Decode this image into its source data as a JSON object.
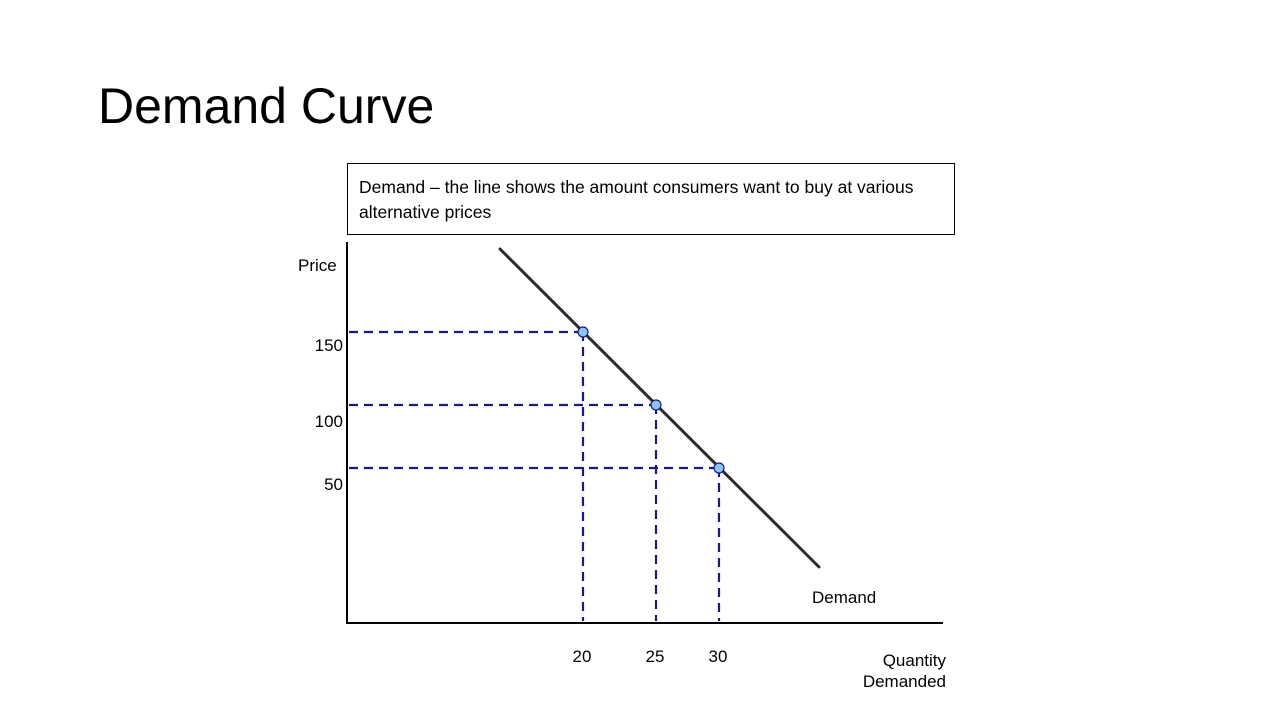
{
  "slide": {
    "title": "Demand Curve"
  },
  "caption": {
    "text": "Demand – the line shows the amount consumers want to buy at various alternative prices"
  },
  "chart_data": {
    "type": "line",
    "ylabel": "Price",
    "xlabel_lines": [
      "Quantity",
      "Demanded"
    ],
    "line_label": "Demand",
    "x_ticks": [
      {
        "label": "20",
        "value": 20
      },
      {
        "label": "25",
        "value": 25
      },
      {
        "label": "30",
        "value": 30
      }
    ],
    "y_ticks": [
      {
        "label": "150",
        "value": 150
      },
      {
        "label": "100",
        "value": 100
      },
      {
        "label": "50",
        "value": 50
      }
    ],
    "points": [
      {
        "x": 20,
        "y": 150
      },
      {
        "x": 25,
        "y": 100
      },
      {
        "x": 30,
        "y": 50
      }
    ],
    "colors": {
      "line": "#2b2b2b",
      "guides": "#1a1a80",
      "point_fill": "#8ec3f0",
      "point_stroke": "#1a1a80"
    }
  }
}
